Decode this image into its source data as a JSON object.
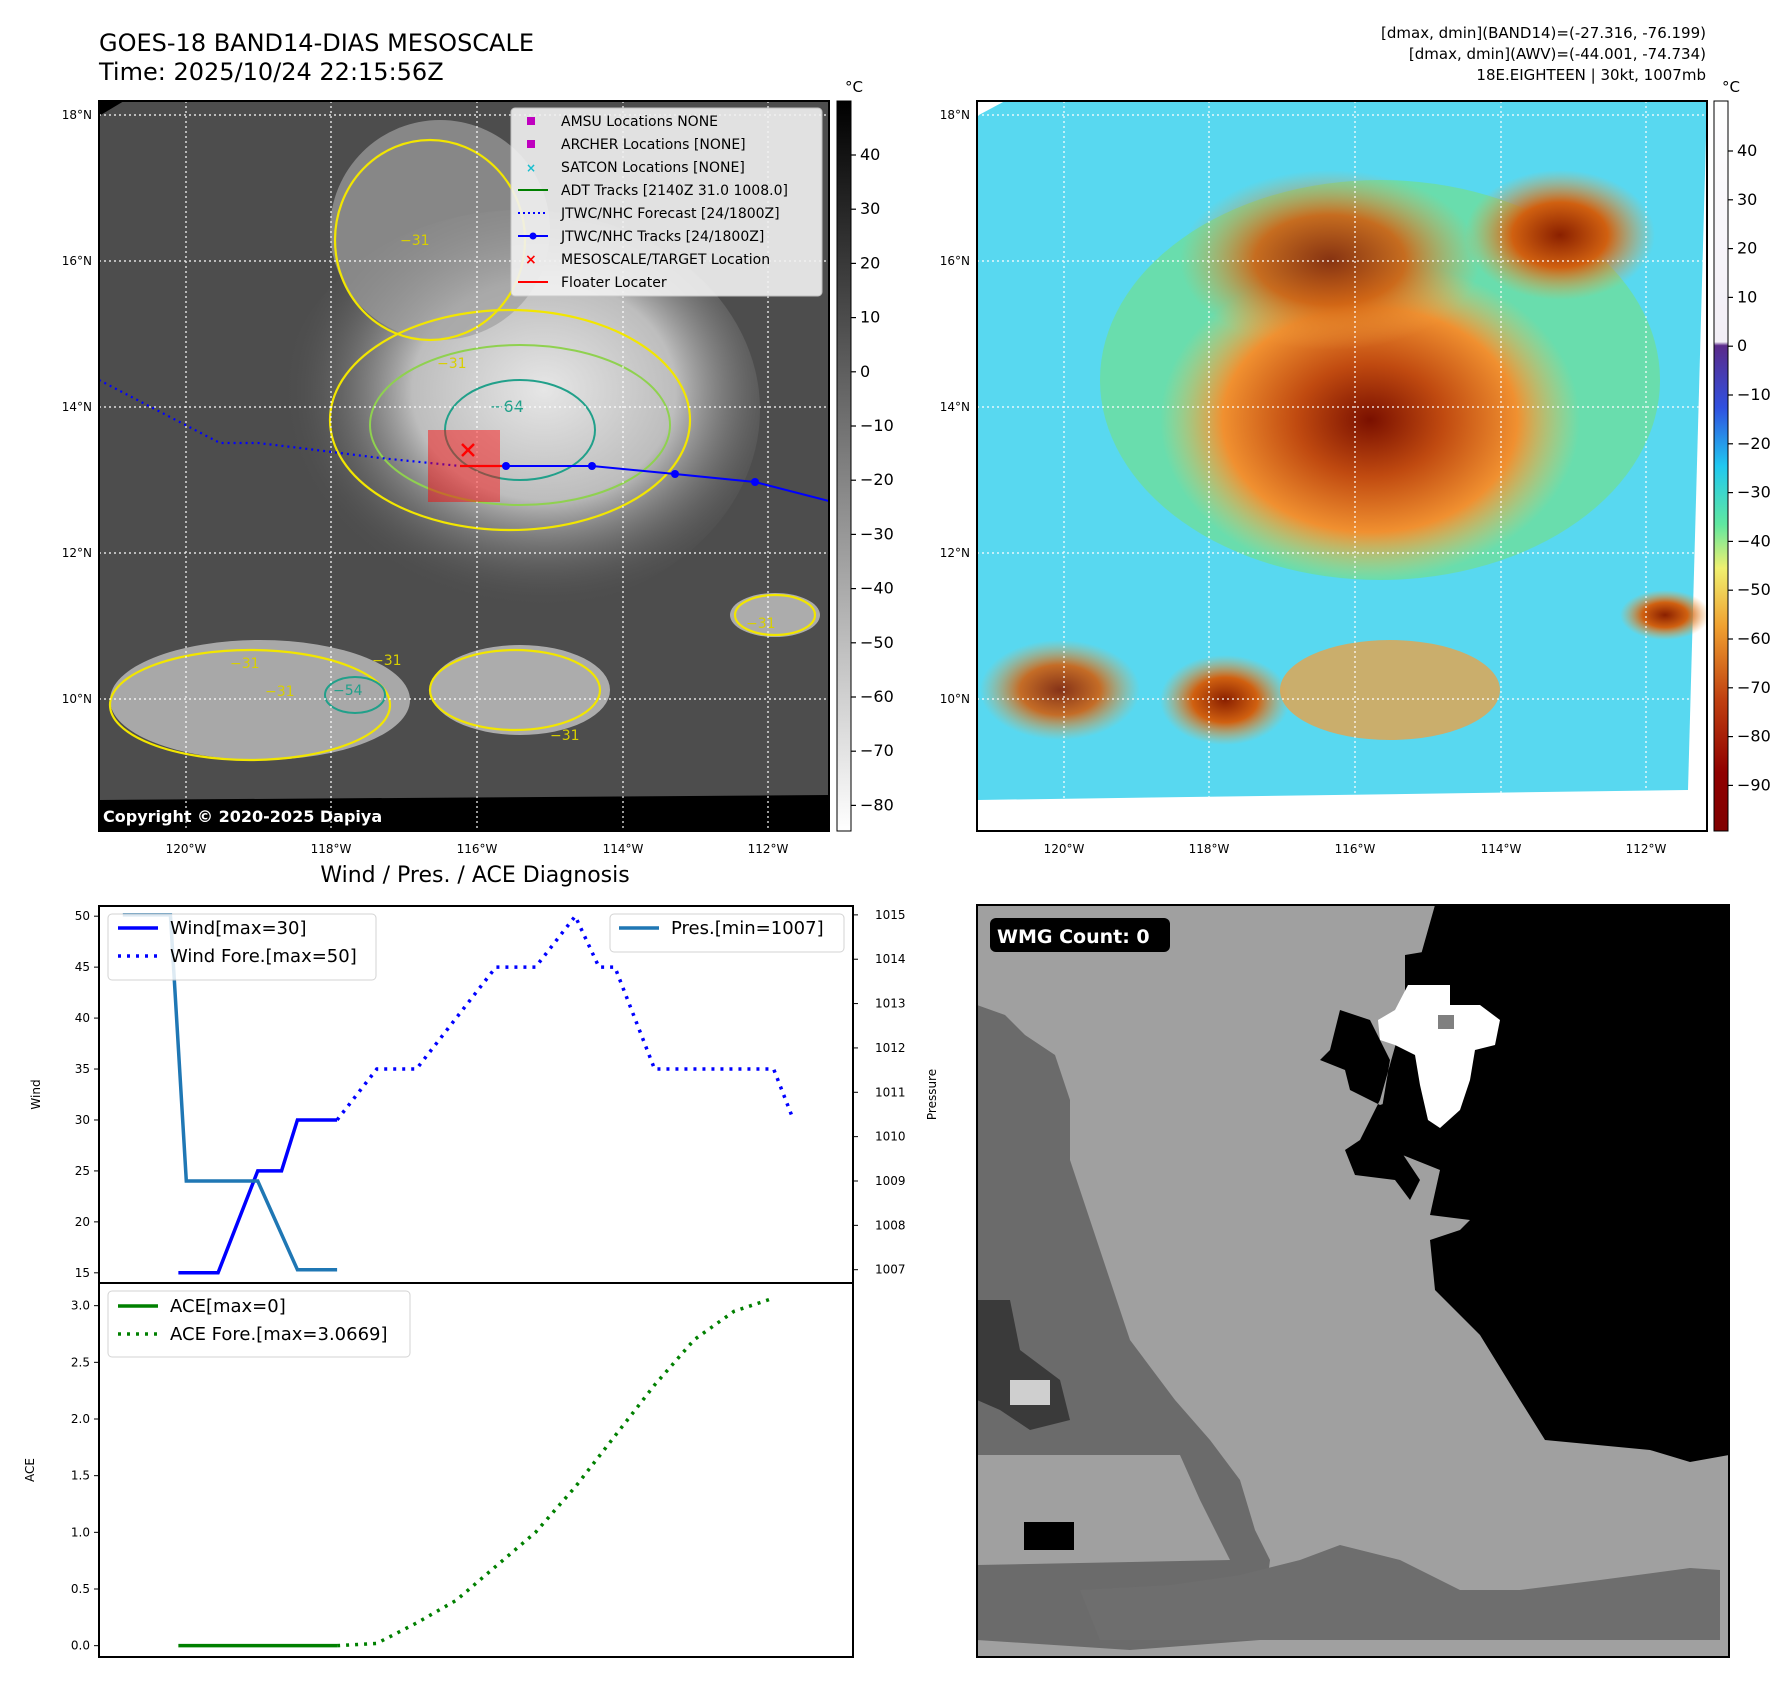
{
  "header": {
    "title_line1": "GOES-18 BAND14-DIAS MESOSCALE",
    "title_line2": "Time: 2025/10/24 22:15:56Z",
    "info_line1": "[dmax, dmin](BAND14)=(-27.316, -76.199)",
    "info_line2": "[dmax, dmin](AWV)=(-44.001, -74.734)",
    "info_line3": "18E.EIGHTEEN | 30kt, 1007mb"
  },
  "copyright": "Copyright © 2020-2025 Dapiya",
  "map_axes": {
    "lat_ticks": [
      "18°N",
      "16°N",
      "14°N",
      "12°N",
      "10°N"
    ],
    "lon_ticks": [
      "120°W",
      "118°W",
      "116°W",
      "114°W",
      "112°W"
    ]
  },
  "ir_panel": {
    "colorbar_unit": "°C",
    "colorbar_ticks": [
      "40",
      "30",
      "20",
      "10",
      "0",
      "−10",
      "−20",
      "−30",
      "−40",
      "−50",
      "−60",
      "−70",
      "−80"
    ],
    "contour_labels": [
      "−31",
      "−31",
      "−31",
      "−31",
      "−31",
      "−64",
      "−31",
      "−31",
      "−54"
    ],
    "legend": [
      {
        "label": "AMSU Locations NONE",
        "marker": "square",
        "color": "#bf00bf"
      },
      {
        "label": "ARCHER Locations [NONE]",
        "marker": "square",
        "color": "#bf00bf"
      },
      {
        "label": "SATCON Locations [NONE]",
        "marker": "x",
        "color": "#17becf"
      },
      {
        "label": "ADT Tracks [2140Z 31.0 1008.0]",
        "marker": "line",
        "color": "#008000"
      },
      {
        "label": "JTWC/NHC Forecast [24/1800Z]",
        "marker": "dotted",
        "color": "#0000ff"
      },
      {
        "label": "JTWC/NHC Tracks [24/1800Z]",
        "marker": "line-dot",
        "color": "#0000ff"
      },
      {
        "label": "MESOSCALE/TARGET Location",
        "marker": "x",
        "color": "#ff0000"
      },
      {
        "label": "Floater Locater",
        "marker": "line",
        "color": "#ff0000"
      }
    ]
  },
  "awv_panel": {
    "colorbar_unit": "°C",
    "colorbar_ticks": [
      "40",
      "30",
      "20",
      "10",
      "0",
      "−10",
      "−20",
      "−30",
      "−40",
      "−50",
      "−60",
      "−70",
      "−80",
      "−90"
    ]
  },
  "wmg_panel": {
    "badge": "WMG Count: 0"
  },
  "chart_data": [
    {
      "type": "line",
      "title": "Wind / Pres. / ACE Diagnosis",
      "ylabel": "Wind",
      "y2label": "Pressure",
      "ylim": [
        14,
        51
      ],
      "y2lim": [
        1006.7,
        1015.2
      ],
      "yticks": [
        50,
        45,
        40,
        35,
        30,
        25,
        20,
        15
      ],
      "y2ticks": [
        1015,
        1014,
        1013,
        1012,
        1011,
        1010,
        1009,
        1008,
        1007
      ],
      "x": [
        0,
        1,
        2,
        3,
        4,
        5,
        6,
        7,
        8,
        9,
        10,
        11,
        12,
        13,
        14,
        15,
        16,
        17,
        18
      ],
      "series": [
        {
          "name": "Wind[max=30]",
          "axis": "left",
          "style": "solid",
          "color": "#0000ff",
          "x": [
            0,
            1,
            2,
            2.6,
            3,
            3.4,
            4
          ],
          "values": [
            15,
            15,
            25,
            25,
            30,
            30,
            30
          ]
        },
        {
          "name": "Wind Fore.[max=50]",
          "axis": "left",
          "style": "dotted",
          "color": "#0000ff",
          "x": [
            4,
            5,
            6,
            7,
            8,
            9,
            10,
            10.6,
            11,
            12,
            13,
            14,
            15,
            15.5
          ],
          "values": [
            30,
            35,
            35,
            40,
            45,
            45,
            50,
            45,
            45,
            35,
            35,
            35,
            35,
            30
          ]
        },
        {
          "name": "Pres.[min=1007]",
          "axis": "right",
          "style": "solid",
          "color": "#1f77b4",
          "x": [
            -1.4,
            -0.2,
            0.2,
            1.2,
            2,
            3,
            4
          ],
          "values": [
            1015,
            1015,
            1009,
            1009,
            1009,
            1007,
            1007
          ]
        }
      ]
    },
    {
      "type": "line",
      "ylabel": "ACE",
      "ylim": [
        -0.1,
        3.2
      ],
      "yticks": [
        3.0,
        2.5,
        2.0,
        1.5,
        1.0,
        0.5,
        0.0
      ],
      "series": [
        {
          "name": "ACE[max=0]",
          "style": "solid",
          "color": "#008000",
          "x": [
            0,
            4
          ],
          "values": [
            0,
            0
          ]
        },
        {
          "name": "ACE Fore.[max=3.0669]",
          "style": "dotted",
          "color": "#008000",
          "x": [
            4,
            5,
            6,
            7,
            8,
            9,
            10,
            11,
            12,
            13,
            14,
            15
          ],
          "values": [
            0,
            0.02,
            0.2,
            0.4,
            0.7,
            1.0,
            1.4,
            1.85,
            2.3,
            2.7,
            2.95,
            3.0669
          ]
        }
      ]
    }
  ]
}
